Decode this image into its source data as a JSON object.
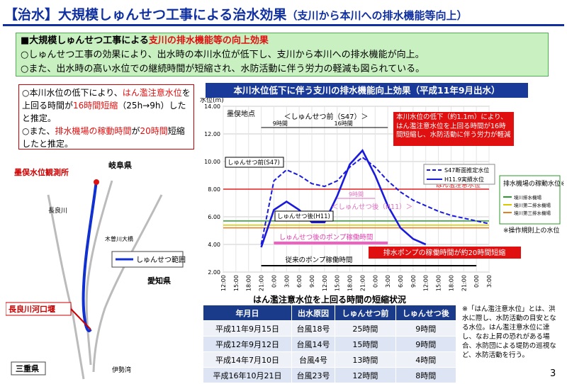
{
  "header": {
    "title": "【治水】大規模しゅんせつ工事による治水効果",
    "subtitle": "（支川から本川への排水機能等向上）"
  },
  "summary": {
    "heading": "■大規模しゅんせつ工事による",
    "heading_red": "支川の排水機能等の向上効果",
    "line1": "○しゅんせつ工事の効果により、出水時の本川水位が低下し、支川から本川への排水機能が向上。",
    "line2": "○また、出水時の高い水位での継続時間が短縮され、水防活動に伴う労力の軽減も図られている。"
  },
  "notes": {
    "a1": "○本川水位の低下により、",
    "a2": "はん濫注意水位",
    "a3": "を上回る時間が",
    "a4": "16時間短縮",
    "a5": "（25h→9h）したと推定。",
    "b1": "○また、",
    "b2": "排水機場の稼動時間",
    "b3": "が",
    "b4": "20時間",
    "b5": "短縮したと推定。"
  },
  "map": {
    "station": "墨俣水位観測所",
    "gifu": "岐阜県",
    "nagara": "長良川",
    "kiso_bridge": "木曽川大橋",
    "dredge_legend": "しゅんせつ範囲",
    "aichi": "愛知県",
    "weir": "長良川河口堰",
    "mie": "三重県",
    "bay": "伊勢湾"
  },
  "chart_data": {
    "type": "line",
    "title": "本川水位低下に伴う支川の排水機能向上効果（平成11年9月出水）",
    "y_label": "水位(m)",
    "location": "墨俣地点",
    "categories": [
      "12:00",
      "15:00",
      "18:00",
      "21:00",
      "0:00",
      "3:00",
      "6:00",
      "9:00",
      "12:00",
      "15:00",
      "18:00",
      "21:00",
      "0:00",
      "3:00",
      "6:00",
      "9:00",
      "12:00",
      "15:00",
      "18:00",
      "21:00",
      "0:00",
      "3:00"
    ],
    "series": [
      {
        "name": "S47断面推定水位",
        "color": "#1a1adc",
        "dash": true,
        "values": [
          null,
          null,
          null,
          4.0,
          8.6,
          9.4,
          9.0,
          8.4,
          8.2,
          8.6,
          9.6,
          10.3,
          9.6,
          8.6,
          7.8,
          7.2,
          6.8,
          6.4,
          6.1,
          5.9,
          5.7,
          5.5
        ]
      },
      {
        "name": "H11.9実績水位",
        "color": "#1a1adc",
        "dash": false,
        "values": [
          null,
          null,
          null,
          3.8,
          6.5,
          7.1,
          6.5,
          5.6,
          5.6,
          7.5,
          9.8,
          10.8,
          9.0,
          6.8,
          5.2,
          4.4,
          4.0,
          null,
          null,
          null,
          null,
          null
        ]
      }
    ],
    "ylim": [
      2,
      14
    ],
    "yticks": [
      {
        "value": 2,
        "label": "2.00"
      },
      {
        "value": 4,
        "label": "4.00"
      },
      {
        "value": 6,
        "label": "6.00"
      },
      {
        "value": 8,
        "label": "8.00"
      },
      {
        "value": 10,
        "label": "10.00"
      },
      {
        "value": 12,
        "label": "12.00"
      },
      {
        "value": 14,
        "label": "14.00"
      }
    ],
    "grid": true,
    "flood_line": {
      "name": "はん濫注意水位",
      "value": 8.0,
      "color": "#e02020"
    },
    "pump_legend_title": "排水機場の稼動水位※",
    "pump_note": "※操作規則上の水位",
    "reference_lines": [
      {
        "name": "境川排水機場",
        "value": 5.7,
        "color": "#2a9a2a"
      },
      {
        "name": "境川第二排水機場",
        "value": 5.4,
        "color": "#d8c800"
      },
      {
        "name": "境川第三排水機場",
        "value": 5.2,
        "color": "#e08020"
      }
    ],
    "annotations": {
      "before_head": "＜しゅんせつ前（S47）＞",
      "span9": "9時間",
      "span16": "16時間",
      "before": "しゅんせつ前(S47)",
      "after": "しゅんせつ後(H11)",
      "after_span9": "9時間",
      "after_head": "＜しゅんせつ後（H11）＞",
      "pump_after": "しゅんせつ後のポンプ稼働時間",
      "pump_before": "従来のポンプ稼働時間",
      "red_box1": "本川水位の低下（約1.1m）により、はん濫注意水位を上回る時間が16時間短縮し、水防活動に伴う労力が軽減",
      "red_box2": "排水ポンプの稼働時間が約20時間短縮"
    }
  },
  "table": {
    "title": "はん濫注意水位を上回る時間の短縮状況",
    "header": [
      "年月日",
      "出水原因",
      "しゅんせつ前",
      "しゅんせつ後"
    ],
    "rows": [
      [
        "平成11年9月15日",
        "台風18号",
        "25時間",
        "9時間"
      ],
      [
        "平成12年9月12日",
        "台風14号",
        "15時間",
        "9時間"
      ],
      [
        "平成14年7月10日",
        "台風4号",
        "13時間",
        "4時間"
      ],
      [
        "平成16年10月21日",
        "台風23号",
        "12時間",
        "8時間"
      ]
    ]
  },
  "footnote": "※「はん濫注意水位」とは、洪水に際し、水防活動の目安となる水位。はん濫注意水位に達し、なお上昇の恐れがある場合、水防団による堤防の巡視など、水防活動を行う。",
  "page_number": "3"
}
